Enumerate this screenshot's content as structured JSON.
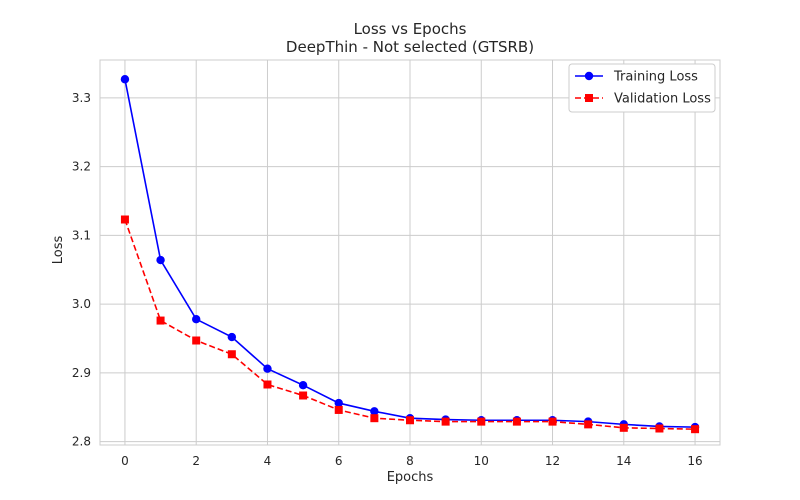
{
  "chart_data": {
    "type": "line",
    "title": "Loss vs Epochs",
    "subtitle": "DeepThin - Not selected (GTSRB)",
    "xlabel": "Epochs",
    "ylabel": "Loss",
    "xlim": [
      -0.7,
      16.7
    ],
    "ylim": [
      2.795,
      3.355
    ],
    "xticks": [
      0,
      2,
      4,
      6,
      8,
      10,
      12,
      14,
      16
    ],
    "yticks": [
      2.8,
      2.9,
      3.0,
      3.1,
      3.2,
      3.3
    ],
    "ytick_labels": [
      "2.8",
      "2.9",
      "3.0",
      "3.1",
      "3.2",
      "3.3"
    ],
    "grid": true,
    "legend_position": "top-right",
    "x": [
      0,
      1,
      2,
      3,
      4,
      5,
      6,
      7,
      8,
      9,
      10,
      11,
      12,
      13,
      14,
      15,
      16
    ],
    "series": [
      {
        "name": "Training Loss",
        "color": "#0000ff",
        "marker": "circle",
        "linestyle": "solid",
        "values": [
          3.327,
          3.064,
          2.978,
          2.952,
          2.906,
          2.882,
          2.856,
          2.844,
          2.834,
          2.832,
          2.831,
          2.831,
          2.831,
          2.829,
          2.825,
          2.822,
          2.821
        ]
      },
      {
        "name": "Validation Loss",
        "color": "#ff0000",
        "marker": "square",
        "linestyle": "dashed",
        "values": [
          3.123,
          2.976,
          2.947,
          2.927,
          2.883,
          2.867,
          2.846,
          2.834,
          2.831,
          2.829,
          2.829,
          2.829,
          2.829,
          2.825,
          2.82,
          2.819,
          2.818
        ]
      }
    ]
  }
}
